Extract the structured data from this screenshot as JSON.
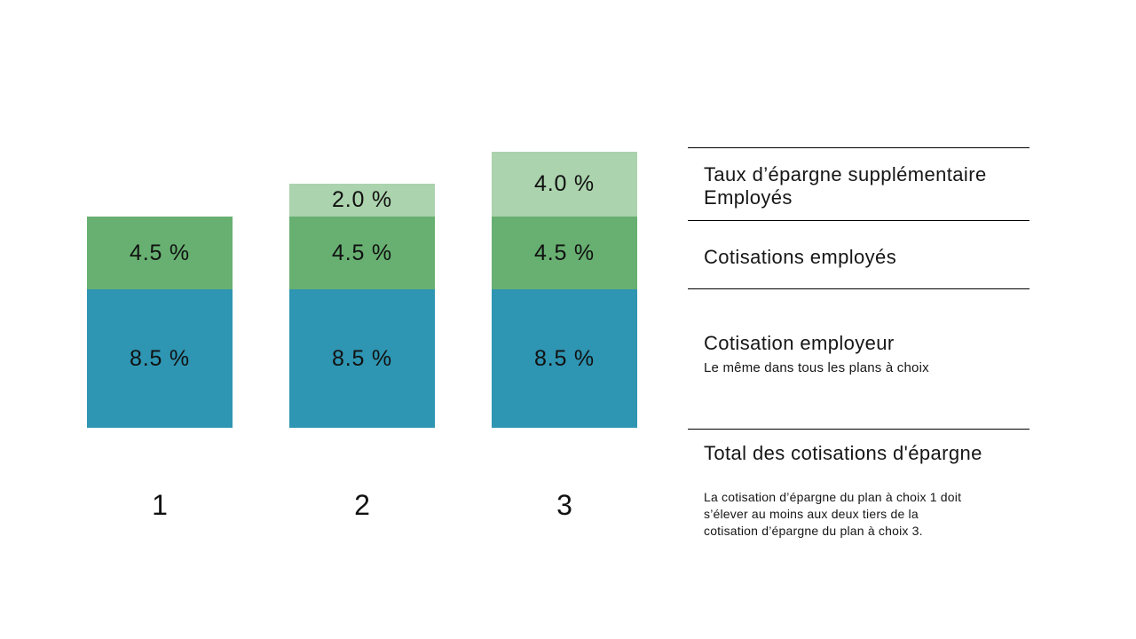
{
  "chart_data": {
    "type": "bar",
    "stacked": true,
    "title": "",
    "categories": [
      "1",
      "2",
      "3"
    ],
    "unit": "%",
    "grid": false,
    "value_axis_visible": false,
    "legend_position": "right-panel",
    "series": [
      {
        "name": "Cotisation employeur",
        "color": "#2E95B2",
        "values": [
          8.5,
          8.5,
          8.5
        ],
        "labels": [
          "8.5 %",
          "8.5 %",
          "8.5 %"
        ]
      },
      {
        "name": "Cotisations employés",
        "color": "#67B071",
        "values": [
          4.5,
          4.5,
          4.5
        ],
        "labels": [
          "4.5 %",
          "4.5 %",
          "4.5 %"
        ]
      },
      {
        "name": "Taux d’épargne supplémentaire Employés",
        "color": "#ABD3AD",
        "values": [
          0,
          2.0,
          4.0
        ],
        "labels": [
          "",
          "2.0 %",
          "4.0 %"
        ]
      }
    ]
  },
  "legend": {
    "entries": [
      {
        "title_lines": [
          "Taux d’épargne supplémentaire",
          "Employés"
        ],
        "subtitle": ""
      },
      {
        "title_lines": [
          "Cotisations employés",
          ""
        ],
        "subtitle": ""
      },
      {
        "title_lines": [
          "Cotisation employeur",
          ""
        ],
        "subtitle": "Le même dans tous les plans à choix"
      },
      {
        "title_lines": [
          "Total des cotisations d'épargne",
          ""
        ],
        "subtitle": ""
      }
    ],
    "footnote_lines": [
      "La cotisation d’épargne du plan à choix 1 doit",
      "s’élever au moins aux deux tiers de la",
      "cotisation d’épargne du plan à choix 3."
    ]
  },
  "colors": {
    "employer": "#2E95B2",
    "employees": "#67B071",
    "supplementary": "#ABD3AD",
    "separator_line": "#000000",
    "text": "#161616"
  }
}
